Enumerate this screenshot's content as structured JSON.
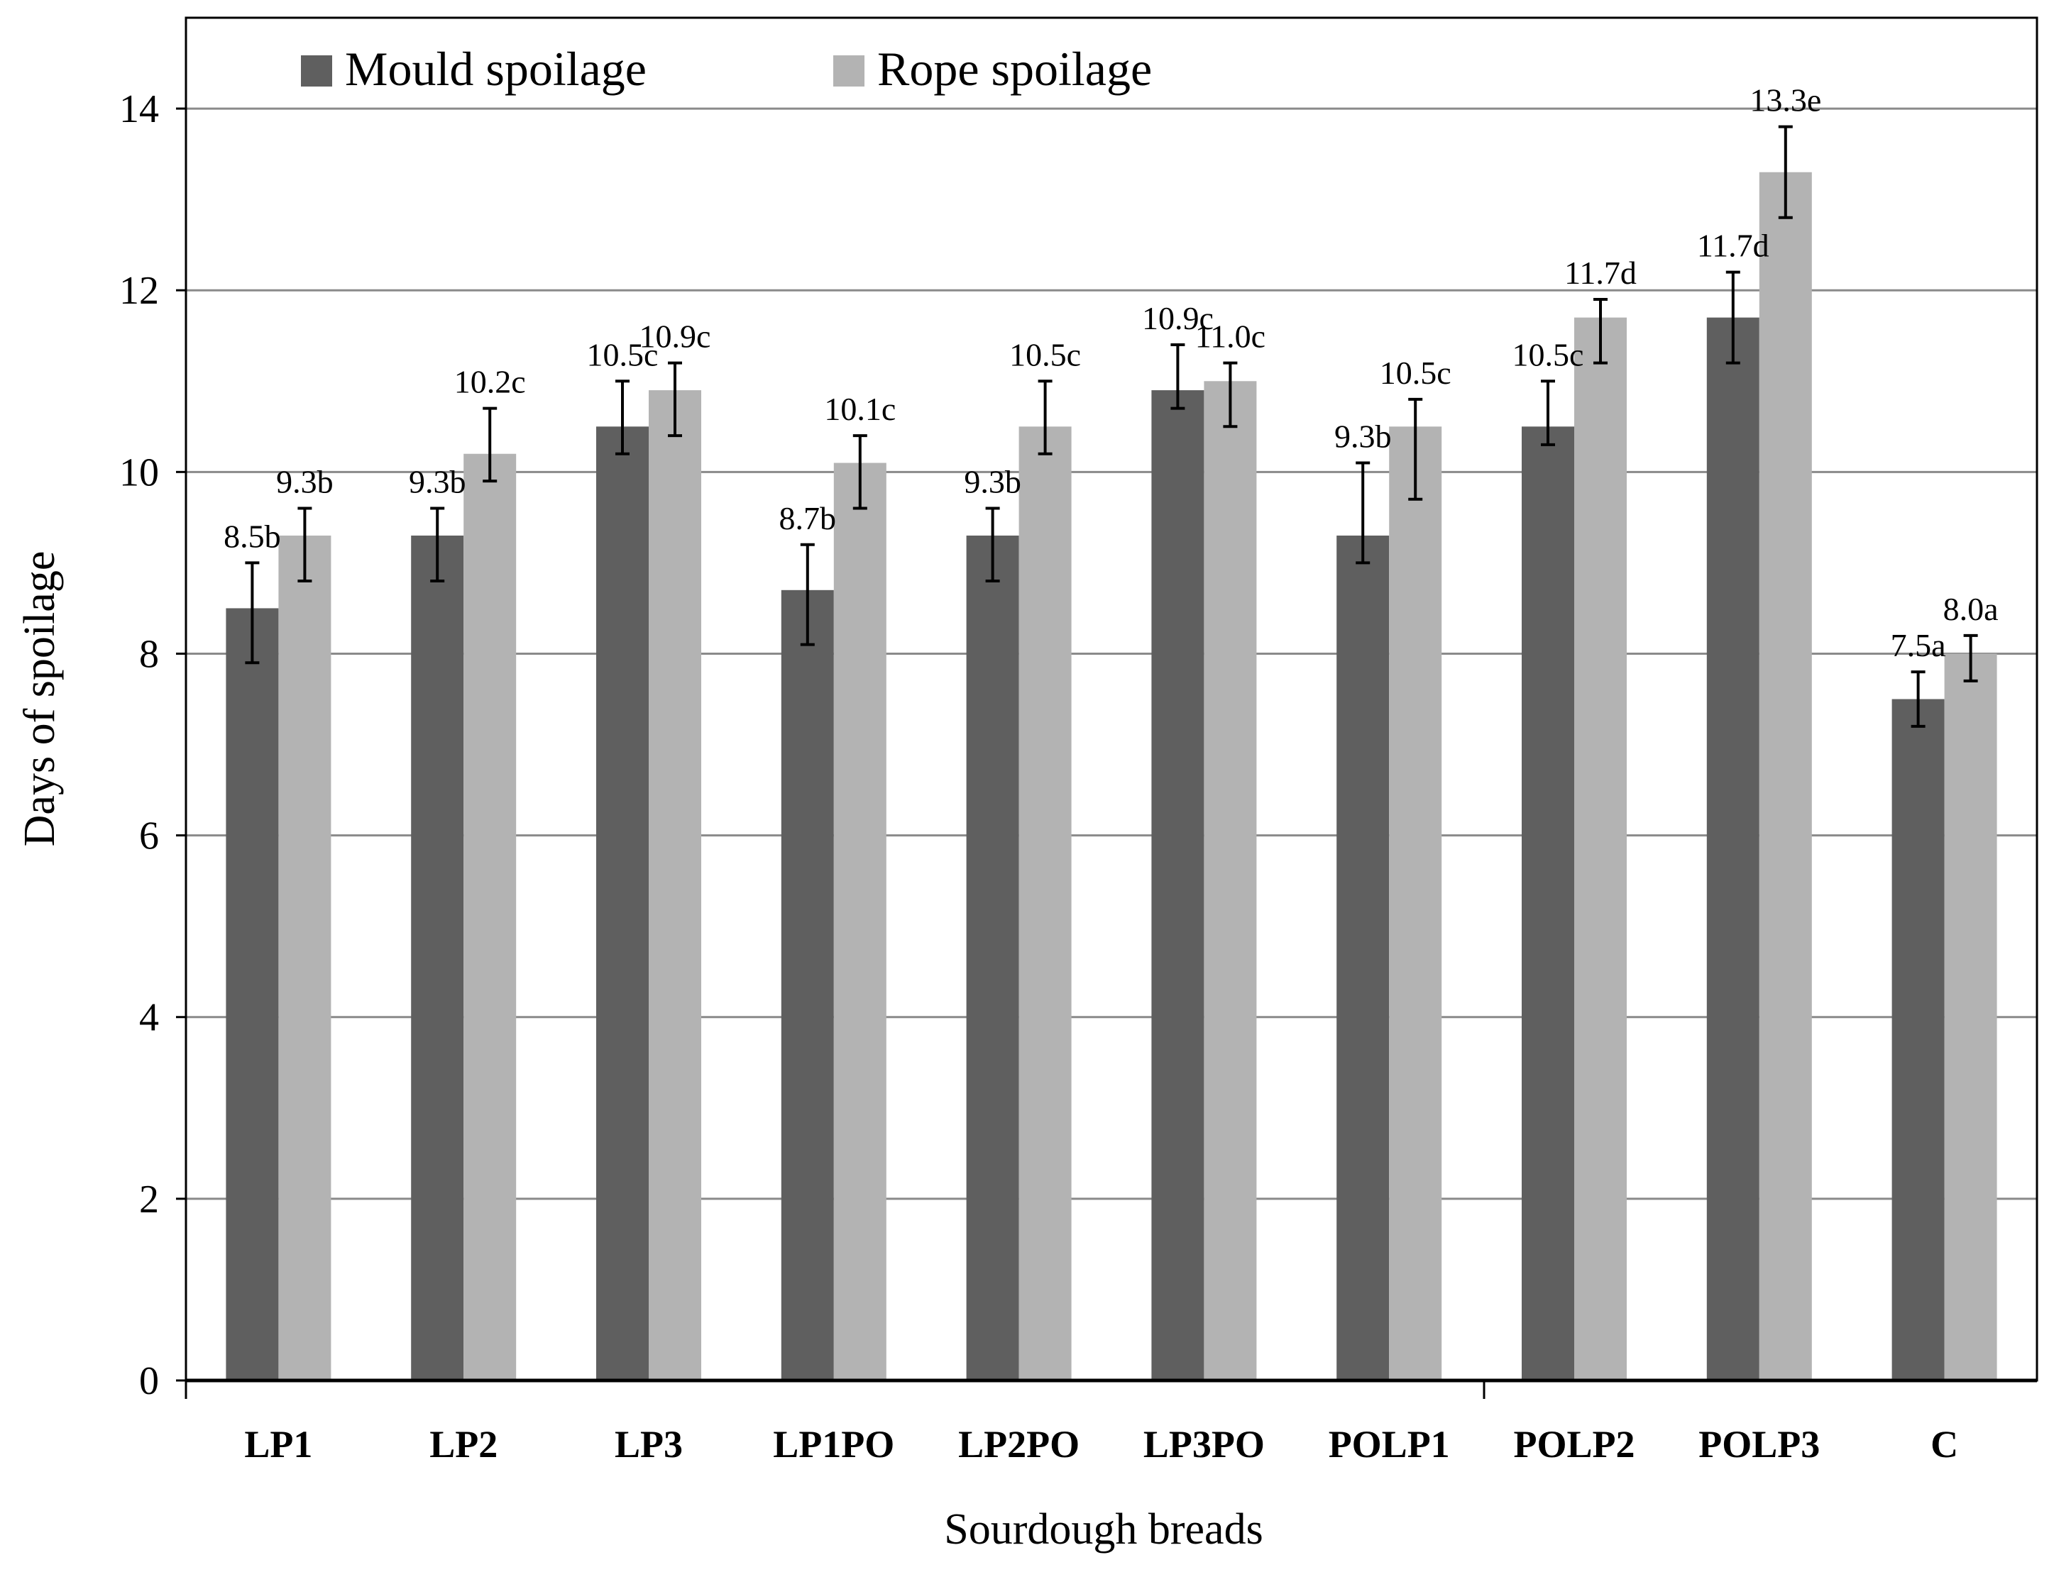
{
  "chart_data": {
    "type": "bar",
    "title": "",
    "xlabel": "Sourdough breads",
    "ylabel": "Days of spoilage",
    "ylim": [
      0,
      15
    ],
    "yticks": [
      0,
      2,
      4,
      6,
      8,
      10,
      12,
      14
    ],
    "grid": true,
    "legend_position": "top-left",
    "categories": [
      "LP1",
      "LP2",
      "LP3",
      "LP1PO",
      "LP2PO",
      "LP3PO",
      "POLP1",
      "POLP2",
      "POLP3",
      "C"
    ],
    "series": [
      {
        "name": "Mould spoilage",
        "color": "#5f5f5f",
        "values": [
          8.5,
          9.3,
          10.5,
          8.7,
          9.3,
          10.9,
          9.3,
          10.5,
          11.7,
          7.5
        ],
        "err_low": [
          7.9,
          8.8,
          10.2,
          8.1,
          8.8,
          10.7,
          9.0,
          10.3,
          11.2,
          7.2
        ],
        "err_high": [
          9.0,
          9.6,
          11.0,
          9.2,
          9.6,
          11.4,
          10.1,
          11.0,
          12.2,
          7.8
        ],
        "labels": [
          "8.5b",
          "9.3b",
          "10.5c",
          "8.7b",
          "9.3b",
          "10.9c",
          "9.3b",
          "10.5c",
          "11.7d",
          "7.5a"
        ]
      },
      {
        "name": "Rope spoilage",
        "color": "#b3b3b3",
        "values": [
          9.3,
          10.2,
          10.9,
          10.1,
          10.5,
          11.0,
          10.5,
          11.7,
          13.3,
          8.0
        ],
        "err_low": [
          8.8,
          9.9,
          10.4,
          9.6,
          10.2,
          10.5,
          9.7,
          11.2,
          12.8,
          7.7
        ],
        "err_high": [
          9.6,
          10.7,
          11.2,
          10.4,
          11.0,
          11.2,
          10.8,
          11.9,
          13.8,
          8.2
        ],
        "labels": [
          "9.3b",
          "10.2c",
          "10.9c",
          "10.1c",
          "10.5c",
          "11.0c",
          "10.5c",
          "11.7d",
          "13.3e",
          "8.0a"
        ]
      }
    ]
  }
}
